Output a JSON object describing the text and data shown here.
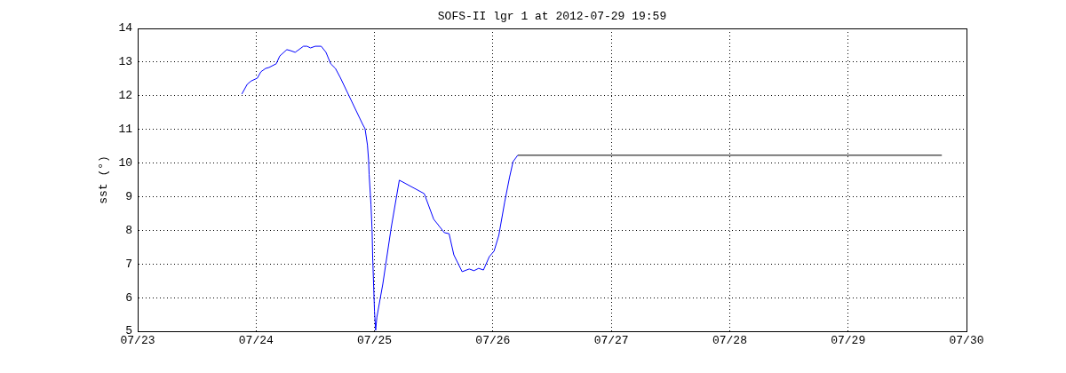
{
  "chart_data": {
    "type": "line",
    "title": "SOFS-II lgr 1 at 2012-07-29 19:59",
    "ylabel": "sst (°)",
    "xlim": [
      "2012-07-23",
      "2012-07-30"
    ],
    "xticks": [
      {
        "value": "2012-07-23",
        "label": "07/23"
      },
      {
        "value": "2012-07-24",
        "label": "07/24"
      },
      {
        "value": "2012-07-25",
        "label": "07/25"
      },
      {
        "value": "2012-07-26",
        "label": "07/26"
      },
      {
        "value": "2012-07-27",
        "label": "07/27"
      },
      {
        "value": "2012-07-28",
        "label": "07/28"
      },
      {
        "value": "2012-07-29",
        "label": "07/29"
      },
      {
        "value": "2012-07-30",
        "label": "07/30"
      }
    ],
    "ylim": [
      5,
      14
    ],
    "yticks": [
      5,
      6,
      7,
      8,
      9,
      10,
      11,
      12,
      13,
      14
    ],
    "grid": true,
    "line_style": "solid",
    "marker": "none",
    "series": [
      {
        "color": "#0000ff",
        "x": [
          "2012-07-23T21:07",
          "2012-07-23T22:12",
          "2012-07-23T23:02",
          "2012-07-24T00:14",
          "2012-07-24T00:58",
          "2012-07-24T01:55",
          "2012-07-24T02:38",
          "2012-07-24T04:05",
          "2012-07-24T04:48",
          "2012-07-24T06:14",
          "2012-07-24T06:58",
          "2012-07-24T07:55",
          "2012-07-24T08:24",
          "2012-07-24T09:36",
          "2012-07-24T10:19",
          "2012-07-24T11:02",
          "2012-07-24T12:00",
          "2012-07-24T13:12",
          "2012-07-24T14:10",
          "2012-07-24T15:07",
          "2012-07-24T16:05",
          "2012-07-24T17:02",
          "2012-07-24T21:36",
          "2012-07-24T22:05",
          "2012-07-24T22:34",
          "2012-07-24T22:48",
          "2012-07-24T22:55",
          "2012-07-24T23:17",
          "2012-07-24T23:31",
          "2012-07-24T23:38",
          "2012-07-25T00:00",
          "2012-07-25T00:14",
          "2012-07-25T00:29",
          "2012-07-25T01:41",
          "2012-07-25T03:22",
          "2012-07-25T05:02",
          "2012-07-25T10:05",
          "2012-07-25T12:00",
          "2012-07-25T14:10",
          "2012-07-25T15:07",
          "2012-07-25T16:05",
          "2012-07-25T17:46",
          "2012-07-25T19:12",
          "2012-07-25T20:10",
          "2012-07-25T21:07",
          "2012-07-25T22:05",
          "2012-07-25T23:17",
          "2012-07-26T00:14",
          "2012-07-26T01:12",
          "2012-07-26T02:24",
          "2012-07-26T03:22",
          "2012-07-26T04:05",
          "2012-07-26T05:02"
        ],
        "values": [
          12.05,
          12.34,
          12.44,
          12.52,
          12.71,
          12.81,
          12.84,
          12.95,
          13.18,
          13.37,
          13.34,
          13.29,
          13.34,
          13.47,
          13.47,
          13.42,
          13.47,
          13.47,
          13.29,
          12.95,
          12.81,
          12.55,
          11.15,
          11.02,
          10.54,
          10.09,
          9.65,
          8.77,
          7.98,
          7.19,
          5.6,
          5.03,
          5.42,
          6.4,
          8.06,
          9.49,
          9.09,
          8.33,
          7.93,
          7.9,
          7.27,
          6.77,
          6.85,
          6.8,
          6.87,
          6.82,
          7.22,
          7.38,
          7.85,
          8.85,
          9.57,
          10.04,
          10.23
        ]
      },
      {
        "color": "#000000",
        "x": [
          "2012-07-26T05:02",
          "2012-07-29T19:00"
        ],
        "values": [
          10.23,
          10.23
        ]
      }
    ]
  }
}
